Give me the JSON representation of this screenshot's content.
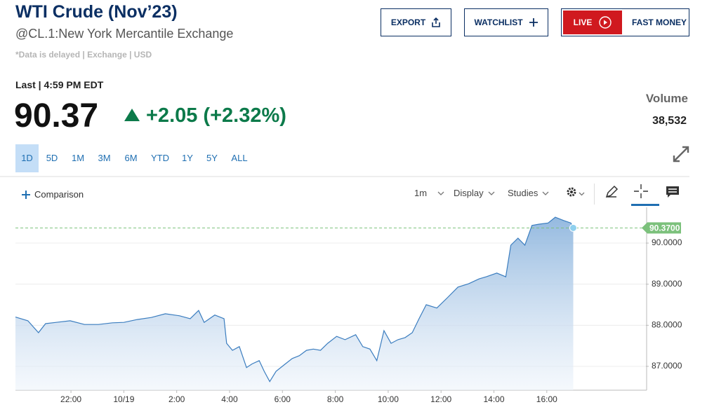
{
  "header": {
    "title": "WTI Crude (Nov’23)",
    "subtitle": "@CL.1:New York Mercantile Exchange",
    "note": "*Data is delayed | Exchange | USD"
  },
  "buttons": {
    "export": "EXPORT",
    "watchlist": "WATCHLIST",
    "live": "LIVE",
    "fast_money": "FAST MONEY"
  },
  "quote": {
    "last_label": "Last | 4:59 PM EDT",
    "price": "90.37",
    "change": "+2.05 (+2.32%)",
    "volume_label": "Volume",
    "volume": "38,532"
  },
  "ranges": [
    "1D",
    "5D",
    "1M",
    "3M",
    "6M",
    "YTD",
    "1Y",
    "5Y",
    "ALL"
  ],
  "toolbar": {
    "comparison": "Comparison",
    "interval": "1m",
    "display": "Display",
    "studies": "Studies"
  },
  "chart_data": {
    "type": "area",
    "color": "#3b7dbf",
    "x": [
      -4.1,
      -3.63,
      -3.23,
      -2.96,
      -2.56,
      -2.03,
      -1.49,
      -0.96,
      -0.43,
      0,
      0.51,
      1.04,
      1.57,
      2.11,
      2.51,
      2.83,
      3.04,
      3.44,
      3.79,
      3.89,
      4.11,
      4.37,
      4.64,
      4.85,
      5.12,
      5.31,
      5.52,
      5.76,
      6.11,
      6.37,
      6.64,
      6.91,
      7.17,
      7.44,
      7.71,
      8.05,
      8.37,
      8.77,
      9.04,
      9.31,
      9.57,
      9.84,
      10.11,
      10.37,
      10.64,
      10.91,
      11.17,
      11.44,
      11.84,
      12.24,
      12.64,
      13.04,
      13.44,
      13.71,
      14.11,
      14.45,
      14.64,
      14.91,
      15.17,
      15.44,
      15.71,
      16.05,
      16.32,
      16.64,
      16.91,
      17.0
    ],
    "values": [
      88.2,
      88.11,
      87.82,
      88.04,
      88.07,
      88.11,
      88.02,
      88.02,
      88.06,
      88.07,
      88.14,
      88.19,
      88.28,
      88.23,
      88.16,
      88.36,
      88.07,
      88.25,
      88.16,
      87.56,
      87.39,
      87.48,
      86.97,
      87.06,
      87.14,
      86.88,
      86.63,
      86.88,
      87.06,
      87.19,
      87.26,
      87.39,
      87.42,
      87.39,
      87.56,
      87.73,
      87.65,
      87.77,
      87.48,
      87.42,
      87.14,
      87.87,
      87.56,
      87.65,
      87.7,
      87.82,
      88.16,
      88.5,
      88.42,
      88.67,
      88.93,
      89.01,
      89.13,
      89.18,
      89.27,
      89.18,
      89.95,
      90.12,
      89.95,
      90.43,
      90.46,
      90.49,
      90.63,
      90.55,
      90.49,
      90.37
    ],
    "xlim": [
      -4.1,
      19.75
    ],
    "xticks": [
      {
        "value": -2,
        "label": "22:00"
      },
      {
        "value": 0,
        "label": "10/19"
      },
      {
        "value": 2,
        "label": "2:00"
      },
      {
        "value": 4,
        "label": "4:00"
      },
      {
        "value": 6,
        "label": "6:00"
      },
      {
        "value": 8,
        "label": "8:00"
      },
      {
        "value": 10,
        "label": "10:00"
      },
      {
        "value": 12,
        "label": "12:00"
      },
      {
        "value": 14,
        "label": "14:00"
      },
      {
        "value": 16,
        "label": "16:00"
      }
    ],
    "ylim": [
      86.42,
      90.87
    ],
    "yticks": [
      {
        "value": 87,
        "label": "87.0000"
      },
      {
        "value": 88,
        "label": "88.0000"
      },
      {
        "value": 89,
        "label": "89.0000"
      },
      {
        "value": 90,
        "label": "90.0000"
      }
    ],
    "grid": true,
    "reference_line": {
      "value": 90.37,
      "label": "90.3700",
      "color": "#7cc17c"
    }
  }
}
